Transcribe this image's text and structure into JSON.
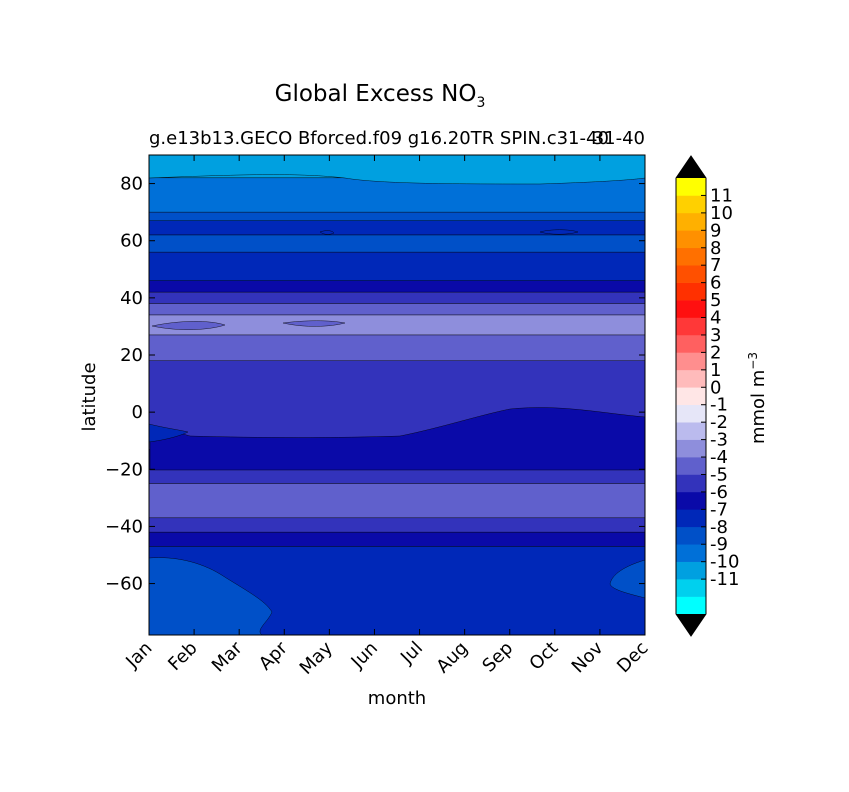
{
  "chart_data": {
    "type": "heatmap",
    "title_main": "Global Excess NO",
    "title_sub": "3",
    "subtitle_left": "g.e13b13.GECO Bforced.f09 g16.20TR SPIN.c31-40",
    "subtitle_right": "31-40",
    "xlabel": "month",
    "ylabel": "latitude",
    "colorbar_label_main": "mmol m",
    "colorbar_label_exp": "−3",
    "x_ticks": [
      "Jan",
      "Feb",
      "Mar",
      "Apr",
      "May",
      "Jun",
      "Jul",
      "Aug",
      "Sep",
      "Oct",
      "Nov",
      "Dec"
    ],
    "y_ticks": [
      {
        "value": 80,
        "label": "80"
      },
      {
        "value": 60,
        "label": "60"
      },
      {
        "value": 40,
        "label": "40"
      },
      {
        "value": 20,
        "label": "20"
      },
      {
        "value": 0,
        "label": "0"
      },
      {
        "value": -20,
        "label": "−20"
      },
      {
        "value": -40,
        "label": "−40"
      },
      {
        "value": -60,
        "label": "−60"
      }
    ],
    "ylim": [
      -78,
      90
    ],
    "xlim": [
      0,
      11
    ],
    "colorbar": {
      "levels": [
        -12,
        -11,
        -10,
        -9,
        -8,
        -7,
        -6,
        -5,
        -4,
        -3,
        -2,
        -1,
        0,
        1,
        2,
        3,
        4,
        5,
        6,
        7,
        8,
        9,
        10,
        11,
        12
      ],
      "colors": [
        "#00ffff",
        "#00d0ee",
        "#00a0e0",
        "#0070d8",
        "#0050c8",
        "#0028b8",
        "#0a0aa8",
        "#3333bb",
        "#6060cc",
        "#8e8edc",
        "#bbbbee",
        "#e6e6f8",
        "#ffe6e6",
        "#ffbbbb",
        "#ff8e8e",
        "#ff6060",
        "#ff3838",
        "#ff1010",
        "#ff3000",
        "#ff5000",
        "#ff7000",
        "#ff9000",
        "#ffb000",
        "#ffd000",
        "#ffff00"
      ],
      "extend_low": "#000000",
      "extend_high": "#000000",
      "tick_labels": [
        "11",
        "10",
        "9",
        "8",
        "7",
        "6",
        "5",
        "4",
        "3",
        "2",
        "1",
        "0",
        "-1",
        "-2",
        "-3",
        "-4",
        "-5",
        "-6",
        "-7",
        "-8",
        "-9",
        "-10",
        "-11"
      ]
    },
    "bands": [
      {
        "lat_min": 82,
        "lat_max": 90,
        "value": -10,
        "color": "#00a0e0"
      },
      {
        "lat_min": 70,
        "lat_max": 82,
        "value": -9,
        "color": "#0070d8"
      },
      {
        "lat_min": 67,
        "lat_max": 70,
        "value": -8,
        "color": "#0050c8"
      },
      {
        "lat_min": 62,
        "lat_max": 67,
        "value": -7,
        "color": "#0028b8"
      },
      {
        "lat_min": 56,
        "lat_max": 62,
        "value": -8,
        "color": "#0050c8"
      },
      {
        "lat_min": 46,
        "lat_max": 56,
        "value": -7,
        "color": "#0028b8"
      },
      {
        "lat_min": 42,
        "lat_max": 46,
        "value": -6,
        "color": "#0a0aa8"
      },
      {
        "lat_min": 38,
        "lat_max": 42,
        "value": -5,
        "color": "#3333bb"
      },
      {
        "lat_min": 34,
        "lat_max": 38,
        "value": -4,
        "color": "#6060cc"
      },
      {
        "lat_min": 27,
        "lat_max": 34,
        "value": -3,
        "color": "#8e8edc"
      },
      {
        "lat_min": 18,
        "lat_max": 27,
        "value": -4,
        "color": "#6060cc"
      },
      {
        "lat_min": -13,
        "lat_max": 18,
        "value": -5,
        "color": "#3333bb"
      },
      {
        "lat_min": -20,
        "lat_max": -13,
        "value": -6,
        "color": "#0a0aa8"
      },
      {
        "lat_min": -25,
        "lat_max": -20,
        "value": -5,
        "color": "#3333bb"
      },
      {
        "lat_min": -37,
        "lat_max": -25,
        "value": -4,
        "color": "#6060cc"
      },
      {
        "lat_min": -42,
        "lat_max": -37,
        "value": -5,
        "color": "#3333bb"
      },
      {
        "lat_min": -47,
        "lat_max": -42,
        "value": -6,
        "color": "#0a0aa8"
      },
      {
        "lat_min": -78,
        "lat_max": -47,
        "value": -7,
        "color": "#0028b8"
      }
    ]
  }
}
